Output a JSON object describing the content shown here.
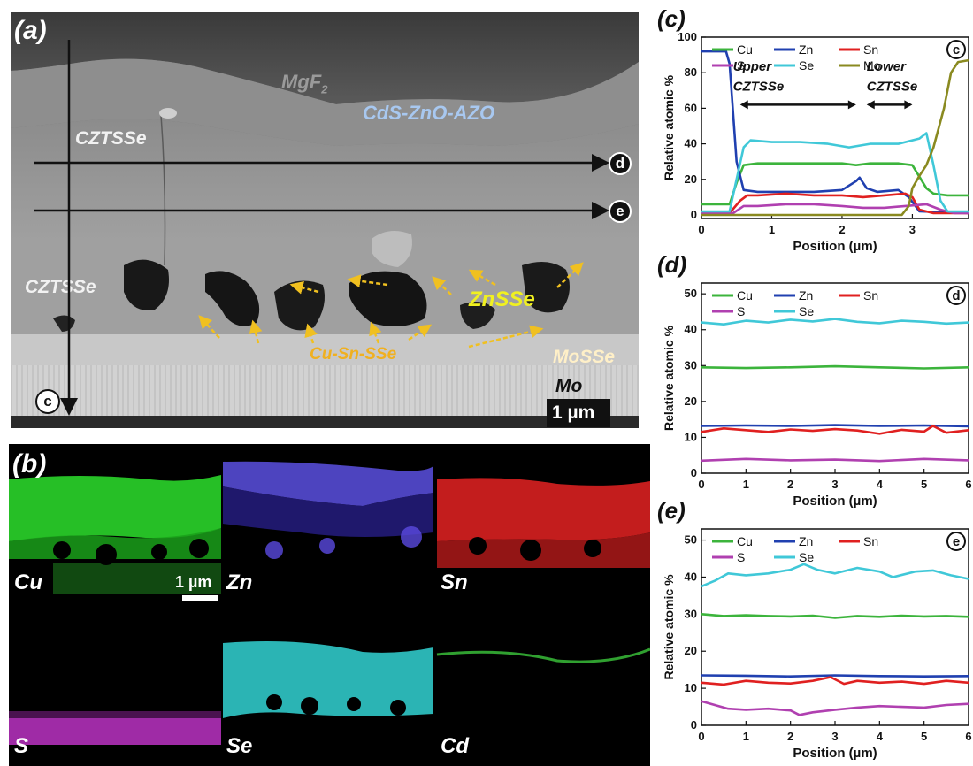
{
  "panel_a": {
    "label": "(a)",
    "layers": {
      "mgf2_main": "MgF",
      "mgf2_sub": "2",
      "cds": "CdS-ZnO-AZO",
      "cztsse_top": "CZTSSe",
      "cztsse_mid": "CZTSSe",
      "znsse": "ZnSSe",
      "cusnsse": "Cu-Sn-SSe",
      "mosse": "MoSSe",
      "mo": "Mo"
    },
    "scale_bar": "1 µm",
    "line_markers": [
      "d",
      "e",
      "c"
    ]
  },
  "panel_b": {
    "label": "(b)",
    "maps": [
      {
        "element": "Cu",
        "color": "#2ad42a"
      },
      {
        "element": "Zn",
        "color": "#4a3cd0"
      },
      {
        "element": "Sn",
        "color": "#d82020"
      },
      {
        "element": "S",
        "color": "#b030b8"
      },
      {
        "element": "Se",
        "color": "#30c8c8"
      },
      {
        "element": "Cd",
        "color": "#30a030"
      }
    ],
    "scale_bar": "1 µm"
  },
  "chart_data": [
    {
      "type": "line",
      "panel": "(c)",
      "marker": "c",
      "xlabel": "Position (µm)",
      "ylabel": "Relative atomic %",
      "xlim": [
        0,
        3.8
      ],
      "ylim": [
        -2,
        100
      ],
      "xticks": [
        0,
        1,
        2,
        3
      ],
      "yticks": [
        0,
        20,
        40,
        60,
        80,
        100
      ],
      "annotations": [
        {
          "text": "Upper",
          "x": 0.45,
          "y": 81
        },
        {
          "text": "CZTSSe",
          "x": 0.45,
          "y": 70
        },
        {
          "text": "Lower",
          "x": 2.35,
          "y": 81
        },
        {
          "text": "CZTSSe",
          "x": 2.35,
          "y": 70
        }
      ],
      "arrows": [
        {
          "x1": 0.55,
          "x2": 2.2,
          "y": 62
        },
        {
          "x1": 2.35,
          "x2": 3.0,
          "y": 62
        }
      ],
      "series": [
        {
          "name": "Cu",
          "color": "#3cb43c",
          "points": [
            [
              0,
              6
            ],
            [
              0.4,
              6
            ],
            [
              0.5,
              18
            ],
            [
              0.6,
              28
            ],
            [
              0.8,
              29
            ],
            [
              1.2,
              29
            ],
            [
              1.6,
              29
            ],
            [
              2.0,
              29
            ],
            [
              2.2,
              28
            ],
            [
              2.4,
              29
            ],
            [
              2.8,
              29
            ],
            [
              3.0,
              28
            ],
            [
              3.2,
              15
            ],
            [
              3.3,
              12
            ],
            [
              3.5,
              11
            ],
            [
              3.8,
              11
            ]
          ]
        },
        {
          "name": "Zn",
          "color": "#2040b0",
          "points": [
            [
              0,
              92
            ],
            [
              0.35,
              92
            ],
            [
              0.4,
              85
            ],
            [
              0.5,
              30
            ],
            [
              0.6,
              14
            ],
            [
              0.8,
              13
            ],
            [
              1.2,
              13
            ],
            [
              1.6,
              13
            ],
            [
              2.0,
              14
            ],
            [
              2.2,
              19
            ],
            [
              2.25,
              21
            ],
            [
              2.35,
              15
            ],
            [
              2.5,
              13
            ],
            [
              2.8,
              14
            ],
            [
              2.95,
              10
            ],
            [
              3.1,
              2
            ],
            [
              3.8,
              1
            ]
          ]
        },
        {
          "name": "Sn",
          "color": "#e02020",
          "points": [
            [
              0,
              1
            ],
            [
              0.4,
              1
            ],
            [
              0.55,
              8
            ],
            [
              0.65,
              11
            ],
            [
              0.8,
              11
            ],
            [
              1.2,
              12
            ],
            [
              1.6,
              11
            ],
            [
              2.0,
              11
            ],
            [
              2.3,
              10
            ],
            [
              2.6,
              11
            ],
            [
              2.9,
              12
            ],
            [
              3.0,
              10
            ],
            [
              3.1,
              3
            ],
            [
              3.3,
              1
            ],
            [
              3.8,
              1
            ]
          ]
        },
        {
          "name": "S",
          "color": "#b040b0",
          "points": [
            [
              0,
              1
            ],
            [
              0.45,
              1
            ],
            [
              0.6,
              5
            ],
            [
              0.8,
              5
            ],
            [
              1.2,
              6
            ],
            [
              1.6,
              6
            ],
            [
              2.0,
              5
            ],
            [
              2.3,
              4
            ],
            [
              2.6,
              4
            ],
            [
              2.9,
              5
            ],
            [
              3.2,
              6
            ],
            [
              3.4,
              3
            ],
            [
              3.6,
              1
            ],
            [
              3.8,
              1
            ]
          ]
        },
        {
          "name": "Se",
          "color": "#40c8d8",
          "points": [
            [
              0,
              2
            ],
            [
              0.4,
              2
            ],
            [
              0.5,
              20
            ],
            [
              0.6,
              38
            ],
            [
              0.7,
              42
            ],
            [
              1.0,
              41
            ],
            [
              1.4,
              41
            ],
            [
              1.8,
              40
            ],
            [
              2.1,
              38
            ],
            [
              2.4,
              40
            ],
            [
              2.8,
              40
            ],
            [
              3.1,
              43
            ],
            [
              3.2,
              46
            ],
            [
              3.3,
              28
            ],
            [
              3.4,
              8
            ],
            [
              3.5,
              2
            ],
            [
              3.8,
              2
            ]
          ]
        },
        {
          "name": "Mo",
          "color": "#8a8a20",
          "points": [
            [
              0,
              0
            ],
            [
              2.85,
              0
            ],
            [
              2.95,
              5
            ],
            [
              3.0,
              15
            ],
            [
              3.1,
              22
            ],
            [
              3.2,
              28
            ],
            [
              3.3,
              38
            ],
            [
              3.45,
              60
            ],
            [
              3.55,
              80
            ],
            [
              3.65,
              86
            ],
            [
              3.8,
              87
            ]
          ]
        }
      ]
    },
    {
      "type": "line",
      "panel": "(d)",
      "marker": "d",
      "xlabel": "Position (µm)",
      "ylabel": "Relative atomic %",
      "xlim": [
        0,
        6
      ],
      "ylim": [
        0,
        53
      ],
      "xticks": [
        0,
        1,
        2,
        3,
        4,
        5,
        6
      ],
      "yticks": [
        0,
        10,
        20,
        30,
        40,
        50
      ],
      "series": [
        {
          "name": "Cu",
          "color": "#3cb43c",
          "points": [
            [
              0,
              29.5
            ],
            [
              1,
              29.3
            ],
            [
              2,
              29.5
            ],
            [
              3,
              29.8
            ],
            [
              4,
              29.5
            ],
            [
              5,
              29.2
            ],
            [
              6,
              29.5
            ]
          ]
        },
        {
          "name": "Zn",
          "color": "#2040b0",
          "points": [
            [
              0,
              13.2
            ],
            [
              1,
              13.3
            ],
            [
              2,
              13.2
            ],
            [
              3,
              13.4
            ],
            [
              4,
              13.2
            ],
            [
              5,
              13.3
            ],
            [
              6,
              13.1
            ]
          ]
        },
        {
          "name": "Sn",
          "color": "#e02020",
          "points": [
            [
              0,
              11.5
            ],
            [
              0.5,
              12.5
            ],
            [
              1,
              12.0
            ],
            [
              1.5,
              11.5
            ],
            [
              2,
              12.2
            ],
            [
              2.5,
              11.8
            ],
            [
              3,
              12.3
            ],
            [
              3.5,
              11.9
            ],
            [
              4,
              11.0
            ],
            [
              4.5,
              12.1
            ],
            [
              5,
              11.6
            ],
            [
              5.2,
              13.2
            ],
            [
              5.5,
              11.3
            ],
            [
              6,
              12.0
            ]
          ]
        },
        {
          "name": "S",
          "color": "#b040b0",
          "points": [
            [
              0,
              3.5
            ],
            [
              1,
              4.0
            ],
            [
              2,
              3.6
            ],
            [
              3,
              3.8
            ],
            [
              4,
              3.4
            ],
            [
              5,
              4.0
            ],
            [
              6,
              3.6
            ]
          ]
        },
        {
          "name": "Se",
          "color": "#40c8d8",
          "points": [
            [
              0,
              42
            ],
            [
              0.5,
              41.5
            ],
            [
              1,
              42.5
            ],
            [
              1.5,
              42
            ],
            [
              2,
              42.8
            ],
            [
              2.5,
              42.3
            ],
            [
              3,
              43
            ],
            [
              3.5,
              42.2
            ],
            [
              4,
              41.8
            ],
            [
              4.5,
              42.5
            ],
            [
              5,
              42.2
            ],
            [
              5.5,
              41.7
            ],
            [
              6,
              42
            ]
          ]
        }
      ]
    },
    {
      "type": "line",
      "panel": "(e)",
      "marker": "e",
      "xlabel": "Position (µm)",
      "ylabel": "Relative atomic %",
      "xlim": [
        0,
        6
      ],
      "ylim": [
        0,
        53
      ],
      "xticks": [
        0,
        1,
        2,
        3,
        4,
        5,
        6
      ],
      "yticks": [
        0,
        10,
        20,
        30,
        40,
        50
      ],
      "series": [
        {
          "name": "Cu",
          "color": "#3cb43c",
          "points": [
            [
              0,
              30
            ],
            [
              0.5,
              29.5
            ],
            [
              1,
              29.7
            ],
            [
              1.5,
              29.5
            ],
            [
              2,
              29.4
            ],
            [
              2.5,
              29.6
            ],
            [
              3,
              29.0
            ],
            [
              3.5,
              29.5
            ],
            [
              4,
              29.3
            ],
            [
              4.5,
              29.6
            ],
            [
              5,
              29.4
            ],
            [
              5.5,
              29.5
            ],
            [
              6,
              29.3
            ]
          ]
        },
        {
          "name": "Zn",
          "color": "#2040b0",
          "points": [
            [
              0,
              13.5
            ],
            [
              1,
              13.4
            ],
            [
              2,
              13.2
            ],
            [
              3,
              13.5
            ],
            [
              4,
              13.3
            ],
            [
              5,
              13.2
            ],
            [
              6,
              13.3
            ]
          ]
        },
        {
          "name": "Sn",
          "color": "#e02020",
          "points": [
            [
              0,
              11.5
            ],
            [
              0.5,
              11.0
            ],
            [
              1,
              12.0
            ],
            [
              1.5,
              11.5
            ],
            [
              2,
              11.3
            ],
            [
              2.5,
              12.0
            ],
            [
              2.9,
              13.0
            ],
            [
              3.2,
              11.2
            ],
            [
              3.5,
              12.0
            ],
            [
              4,
              11.5
            ],
            [
              4.5,
              11.8
            ],
            [
              5,
              11.2
            ],
            [
              5.5,
              12.0
            ],
            [
              6,
              11.5
            ]
          ]
        },
        {
          "name": "S",
          "color": "#b040b0",
          "points": [
            [
              0,
              6.5
            ],
            [
              0.3,
              5.5
            ],
            [
              0.6,
              4.5
            ],
            [
              1,
              4.2
            ],
            [
              1.5,
              4.5
            ],
            [
              2,
              4.0
            ],
            [
              2.2,
              2.8
            ],
            [
              2.5,
              3.5
            ],
            [
              3,
              4.2
            ],
            [
              3.5,
              4.8
            ],
            [
              4,
              5.2
            ],
            [
              4.5,
              5.0
            ],
            [
              5,
              4.8
            ],
            [
              5.5,
              5.5
            ],
            [
              6,
              5.8
            ]
          ]
        },
        {
          "name": "Se",
          "color": "#40c8d8",
          "points": [
            [
              0,
              37.5
            ],
            [
              0.3,
              39
            ],
            [
              0.6,
              41
            ],
            [
              1,
              40.5
            ],
            [
              1.5,
              41
            ],
            [
              2,
              42
            ],
            [
              2.3,
              43.5
            ],
            [
              2.6,
              42
            ],
            [
              3,
              41
            ],
            [
              3.5,
              42.5
            ],
            [
              4,
              41.5
            ],
            [
              4.3,
              40
            ],
            [
              4.8,
              41.5
            ],
            [
              5.2,
              41.8
            ],
            [
              5.6,
              40.5
            ],
            [
              6,
              39.5
            ]
          ]
        }
      ]
    }
  ]
}
